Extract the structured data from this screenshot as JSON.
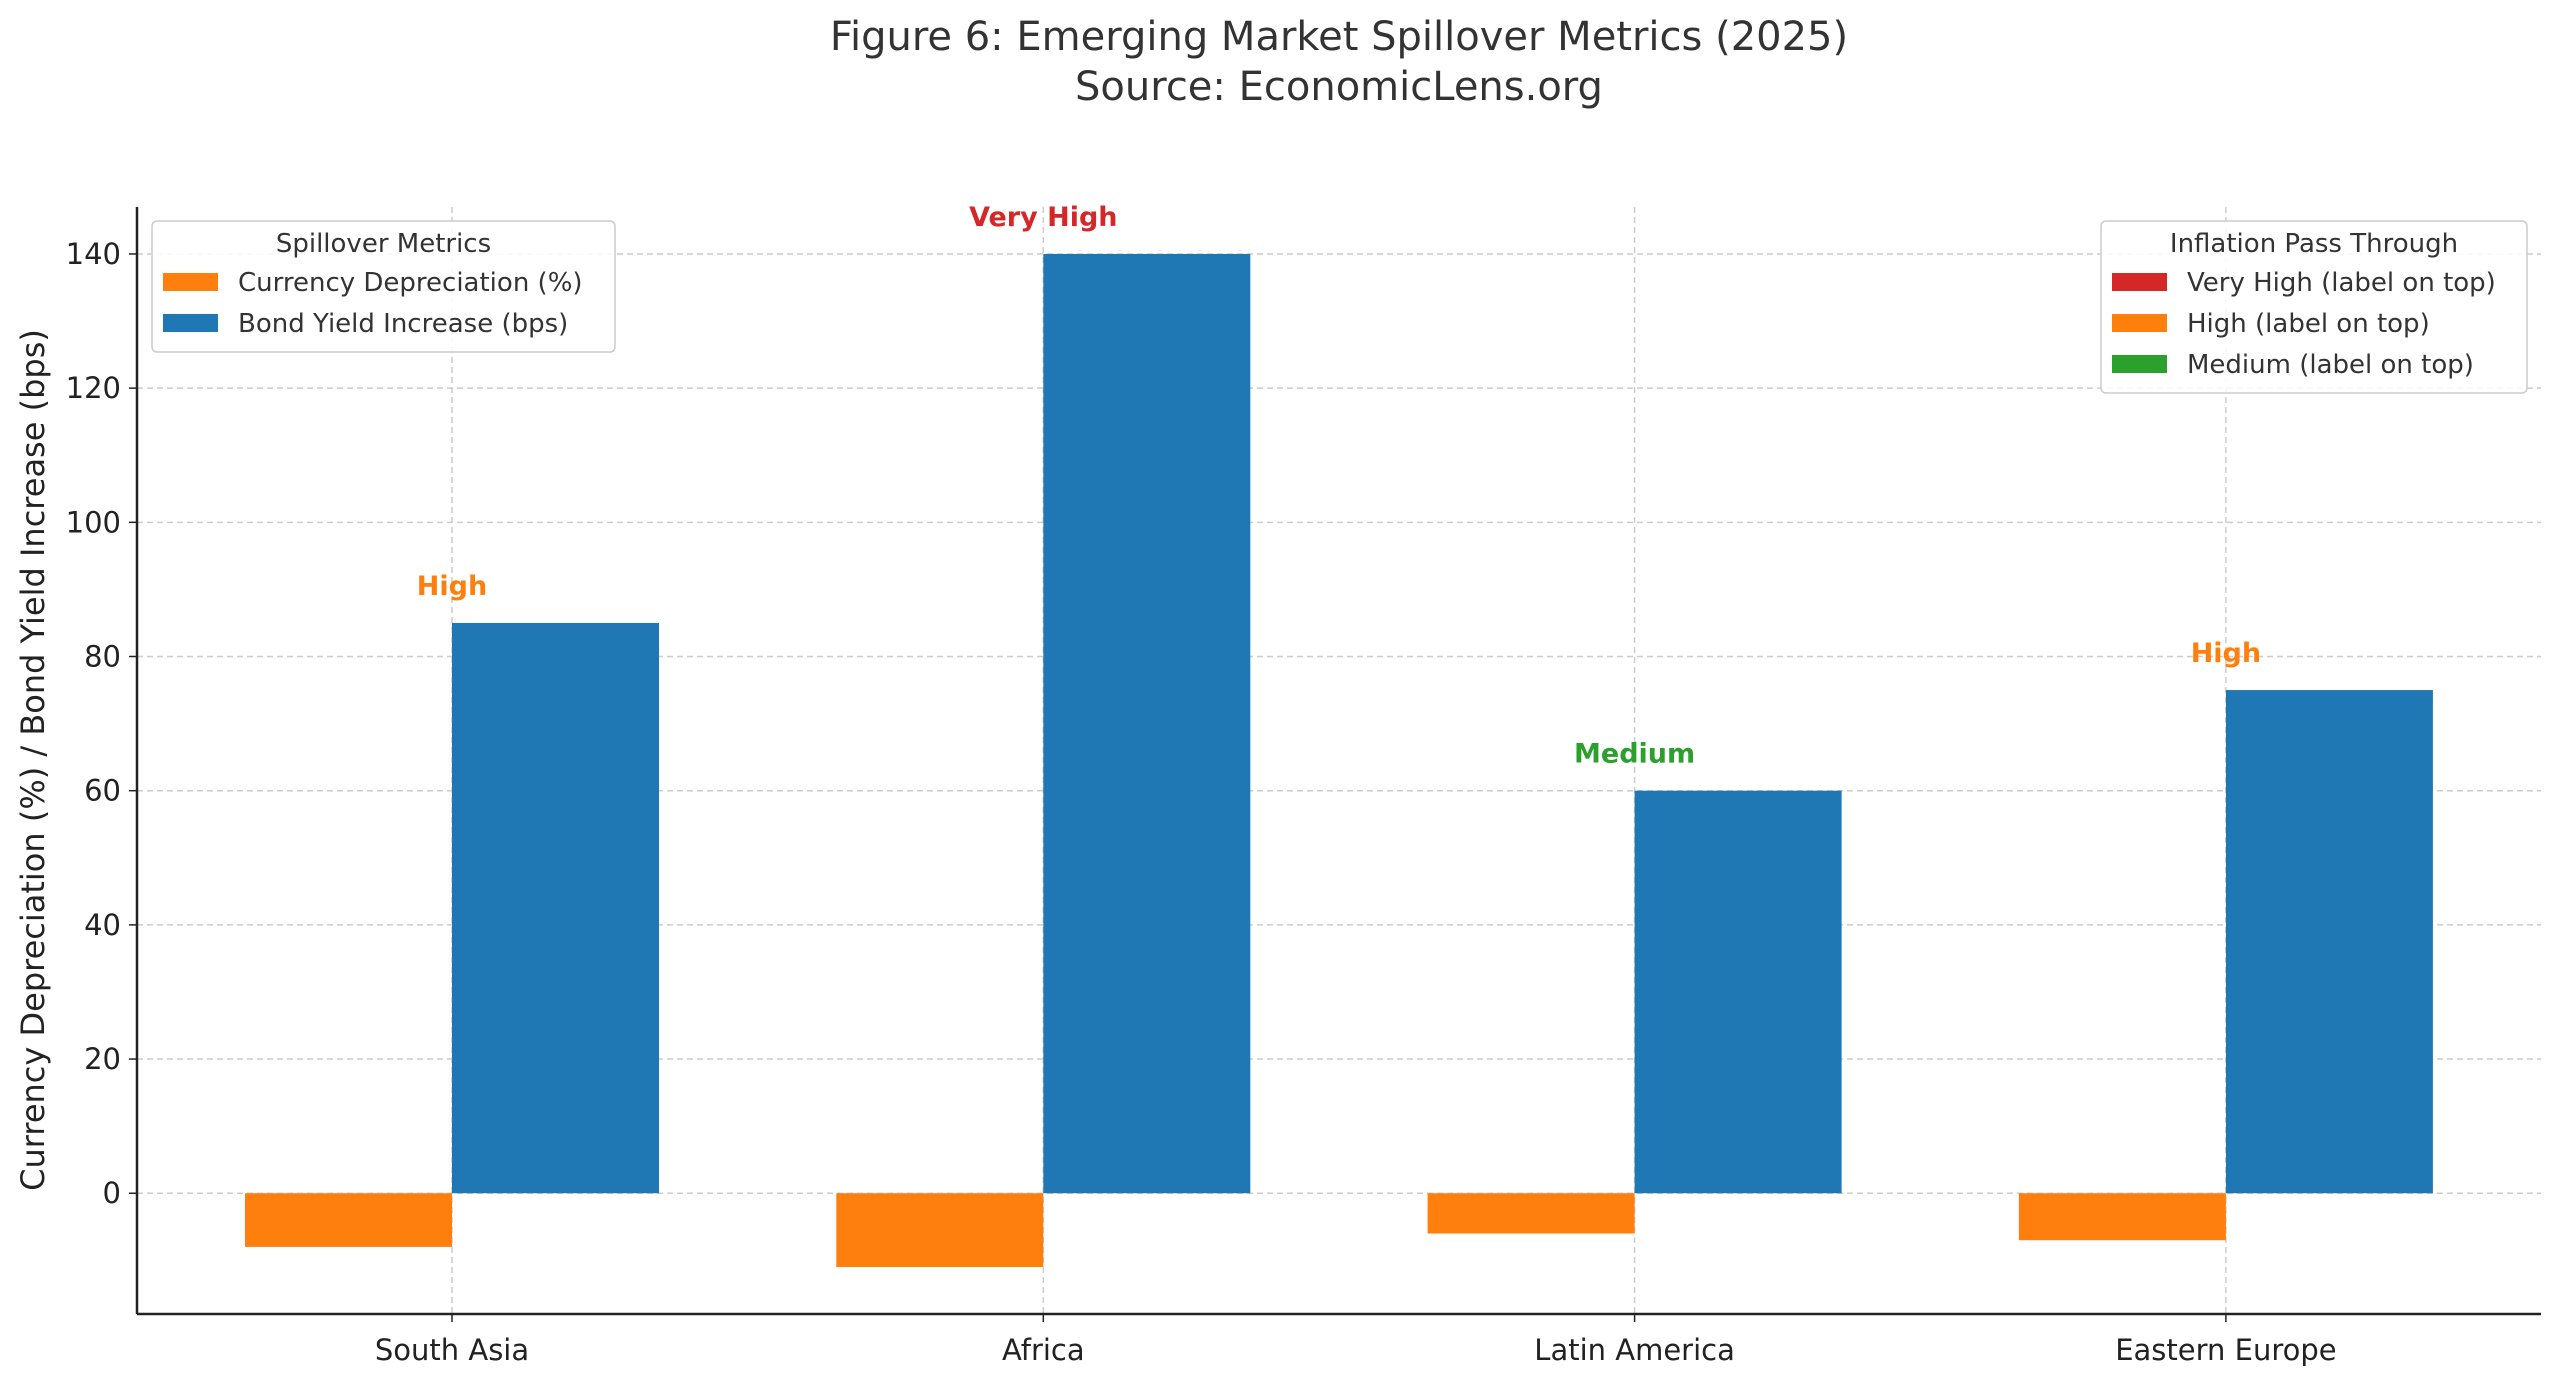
{
  "chart_data": {
    "type": "bar",
    "title": "Figure 6: Emerging Market Spillover Metrics (2025)",
    "subtitle": "Source: EconomicLens.org",
    "xlabel": "",
    "ylabel": "Currency Depreciation (%) / Bond Yield Increase (bps)",
    "categories": [
      "South Asia",
      "Africa",
      "Latin America",
      "Eastern Europe"
    ],
    "ylim": [
      -18,
      147
    ],
    "yticks": [
      0,
      20,
      40,
      60,
      80,
      100,
      120,
      140
    ],
    "grid": true,
    "series": [
      {
        "name": "Currency Depreciation (%)",
        "color": "#ff7f0e",
        "values": [
          -8,
          -11,
          -6,
          -7
        ]
      },
      {
        "name": "Bond Yield Increase (bps)",
        "color": "#1f77b4",
        "values": [
          85,
          140,
          60,
          75
        ]
      }
    ],
    "annotations": [
      {
        "category": "South Asia",
        "text": "High",
        "color": "#ff7f0e"
      },
      {
        "category": "Africa",
        "text": "Very High",
        "color": "#d62728"
      },
      {
        "category": "Latin America",
        "text": "Medium",
        "color": "#2ca02c"
      },
      {
        "category": "Eastern Europe",
        "text": "High",
        "color": "#ff7f0e"
      }
    ],
    "legends": [
      {
        "title": "Spillover Metrics",
        "placement": "top-left",
        "entries": [
          {
            "label": "Currency Depreciation (%)",
            "color": "#ff7f0e"
          },
          {
            "label": "Bond Yield Increase (bps)",
            "color": "#1f77b4"
          }
        ]
      },
      {
        "title": "Inflation Pass Through",
        "placement": "top-right",
        "entries": [
          {
            "label": "Very High (label on top)",
            "color": "#d62728"
          },
          {
            "label": "High (label on top)",
            "color": "#ff7f0e"
          },
          {
            "label": "Medium (label on top)",
            "color": "#2ca02c"
          }
        ]
      }
    ]
  }
}
